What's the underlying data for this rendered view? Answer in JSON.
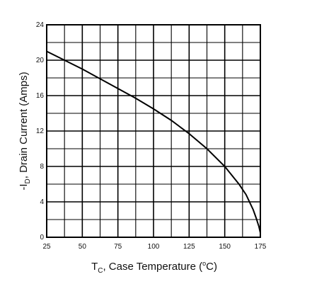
{
  "chart_data": {
    "type": "line",
    "xlabel": {
      "main": "T",
      "sub": "C",
      "tail": ", Case Temperature (",
      "deg": "o",
      "end": "C)"
    },
    "ylabel": {
      "pre": "-I",
      "sub": "D",
      "tail": ", Drain Current (Amps)"
    },
    "xlim": [
      25,
      175
    ],
    "ylim": [
      0,
      24
    ],
    "x_ticks": [
      "25",
      "50",
      "75",
      "100",
      "125",
      "150",
      "175"
    ],
    "y_ticks": [
      "0",
      "4",
      "8",
      "12",
      "16",
      "20",
      "24"
    ],
    "grid": true,
    "series": [
      {
        "x": [
          25,
          37.5,
          50,
          62.5,
          75,
          87.5,
          100,
          112.5,
          125,
          137.5,
          150,
          160,
          165,
          170,
          172,
          174,
          175
        ],
        "y": [
          21.0,
          20.0,
          19.0,
          17.9,
          16.8,
          15.7,
          14.5,
          13.2,
          11.7,
          10.0,
          8.0,
          6.0,
          4.8,
          3.1,
          2.2,
          1.2,
          0.5
        ]
      }
    ]
  }
}
